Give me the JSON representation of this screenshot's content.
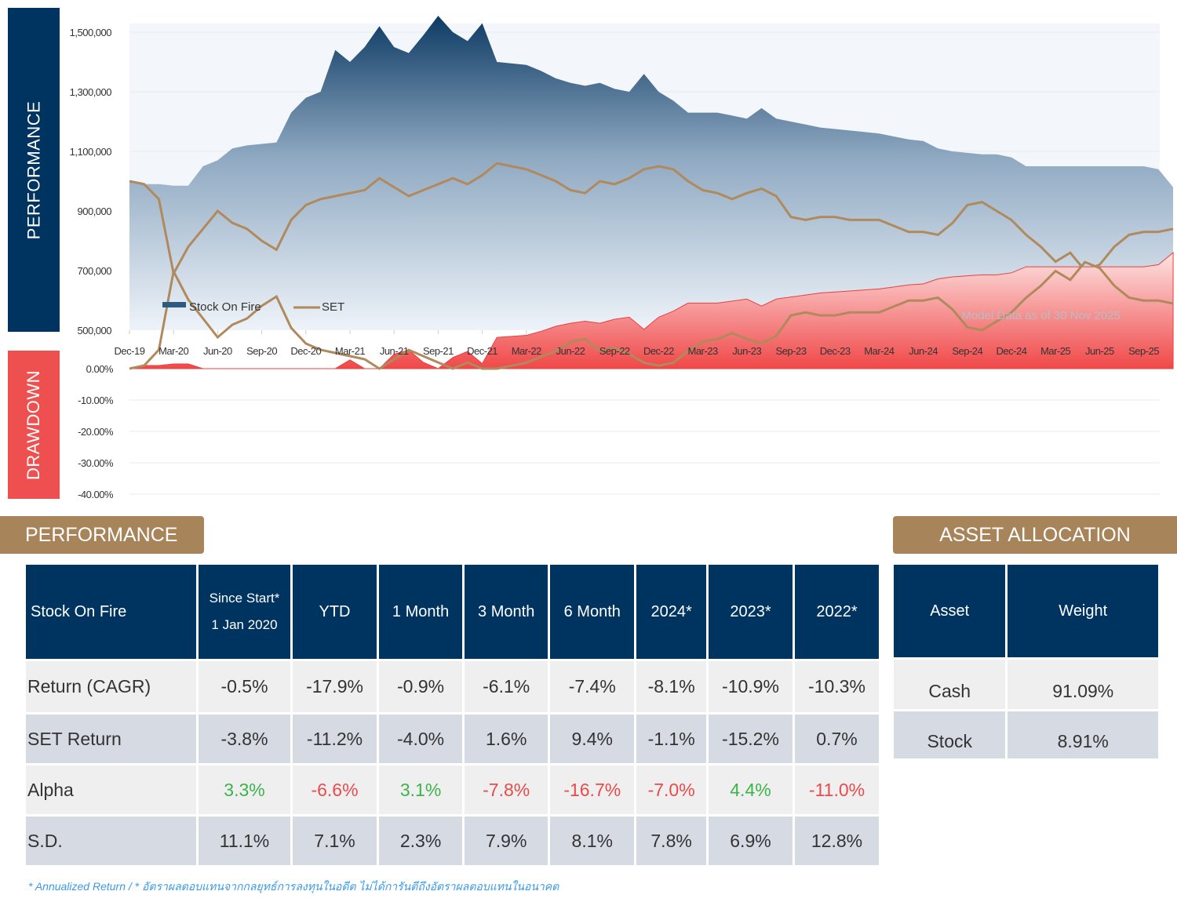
{
  "side_labels": {
    "performance": "PERFORMANCE",
    "drawdown": "DRAWDOWN"
  },
  "colors": {
    "navy": "#003460",
    "gold": "#a8845a",
    "red": "#ee5050",
    "set_line": "#b08a5c",
    "positive": "#3cb44a",
    "negative": "#e94b4b"
  },
  "chart_data": [
    {
      "type": "area",
      "title": "",
      "ylim": [
        500000,
        1500000
      ],
      "y_ticks": [
        "500,000",
        "700,000",
        "900,000",
        "1,100,000",
        "1,300,000",
        "1,500,000"
      ],
      "x_ticks": [
        "Dec-19",
        "Mar-20",
        "Jun-20",
        "Sep-20",
        "Dec-20",
        "Mar-21",
        "Jun-21",
        "Sep-21",
        "Dec-21",
        "Mar-22",
        "Jun-22",
        "Sep-22",
        "Dec-22",
        "Mar-23",
        "Jun-23",
        "Sep-23",
        "Dec-23",
        "Mar-24",
        "Jun-24",
        "Sep-24",
        "Dec-24",
        "Mar-25",
        "Jun-25",
        "Sep-25"
      ],
      "x": [
        "Dec-19",
        "Jan-20",
        "Feb-20",
        "Mar-20",
        "Apr-20",
        "May-20",
        "Jun-20",
        "Jul-20",
        "Aug-20",
        "Sep-20",
        "Oct-20",
        "Nov-20",
        "Dec-20",
        "Jan-21",
        "Feb-21",
        "Mar-21",
        "Apr-21",
        "May-21",
        "Jun-21",
        "Jul-21",
        "Aug-21",
        "Sep-21",
        "Oct-21",
        "Nov-21",
        "Dec-21",
        "Jan-22",
        "Feb-22",
        "Mar-22",
        "Apr-22",
        "May-22",
        "Jun-22",
        "Jul-22",
        "Aug-22",
        "Sep-22",
        "Oct-22",
        "Nov-22",
        "Dec-22",
        "Jan-23",
        "Feb-23",
        "Mar-23",
        "Apr-23",
        "May-23",
        "Jun-23",
        "Jul-23",
        "Aug-23",
        "Sep-23",
        "Oct-23",
        "Nov-23",
        "Dec-23",
        "Jan-24",
        "Feb-24",
        "Mar-24",
        "Apr-24",
        "May-24",
        "Jun-24",
        "Jul-24",
        "Aug-24",
        "Sep-24",
        "Oct-24",
        "Nov-24",
        "Dec-24",
        "Jan-25",
        "Feb-25",
        "Mar-25",
        "Apr-25",
        "May-25",
        "Jun-25",
        "Jul-25",
        "Aug-25",
        "Sep-25",
        "Oct-25",
        "Nov-25"
      ],
      "series": [
        {
          "name": "Stock On Fire",
          "style": "area",
          "values": [
            1000000,
            990000,
            990000,
            985000,
            985000,
            1050000,
            1070000,
            1110000,
            1120000,
            1125000,
            1130000,
            1230000,
            1280000,
            1300000,
            1440000,
            1400000,
            1450000,
            1520000,
            1450000,
            1430000,
            1490000,
            1555000,
            1500000,
            1470000,
            1530000,
            1400000,
            1395000,
            1390000,
            1370000,
            1345000,
            1330000,
            1320000,
            1330000,
            1310000,
            1300000,
            1360000,
            1300000,
            1270000,
            1230000,
            1230000,
            1230000,
            1220000,
            1210000,
            1245000,
            1210000,
            1200000,
            1190000,
            1180000,
            1175000,
            1170000,
            1165000,
            1160000,
            1150000,
            1140000,
            1135000,
            1110000,
            1100000,
            1095000,
            1090000,
            1090000,
            1080000,
            1050000,
            1050000,
            1050000,
            1050000,
            1050000,
            1050000,
            1050000,
            1050000,
            1050000,
            1040000,
            980000
          ]
        },
        {
          "name": "SET",
          "style": "line",
          "values": [
            1000000,
            990000,
            940000,
            690000,
            780000,
            840000,
            900000,
            860000,
            840000,
            800000,
            770000,
            870000,
            920000,
            940000,
            950000,
            960000,
            970000,
            1010000,
            980000,
            950000,
            970000,
            990000,
            1010000,
            990000,
            1020000,
            1060000,
            1050000,
            1040000,
            1020000,
            1000000,
            970000,
            960000,
            1000000,
            990000,
            1010000,
            1040000,
            1050000,
            1040000,
            1000000,
            970000,
            960000,
            940000,
            960000,
            975000,
            950000,
            880000,
            870000,
            880000,
            880000,
            870000,
            870000,
            870000,
            850000,
            830000,
            830000,
            820000,
            860000,
            920000,
            930000,
            900000,
            870000,
            820000,
            780000,
            730000,
            760000,
            700000,
            720000,
            780000,
            820000,
            830000,
            830000,
            840000
          ]
        }
      ],
      "legend": "bottom-left",
      "annotation": "Model Data as of 30 Nov 2025"
    },
    {
      "type": "area",
      "title": "",
      "ylim": [
        -40,
        0
      ],
      "y_ticks": [
        "0.00%",
        "-10.00%",
        "-20.00%",
        "-30.00%",
        "-40.00%"
      ],
      "series": [
        {
          "name": "Stock On Fire",
          "style": "area",
          "derived_from": "drawdown"
        },
        {
          "name": "SET",
          "style": "line",
          "derived_from": "drawdown"
        }
      ]
    }
  ],
  "performance": {
    "title": "PERFORMANCE",
    "headers": [
      "Stock On Fire",
      "Since Start*",
      "1 Jan 2020",
      "YTD",
      "1 Month",
      "3 Month",
      "6 Month",
      "2024*",
      "2023*",
      "2022*"
    ],
    "rows": [
      {
        "label": "Return (CAGR)",
        "values": [
          "-0.5%",
          "-17.9%",
          "-0.9%",
          "-6.1%",
          "-7.4%",
          "-8.1%",
          "-10.9%",
          "-10.3%"
        ]
      },
      {
        "label": "SET Return",
        "values": [
          "-3.8%",
          "-11.2%",
          "-4.0%",
          "1.6%",
          "9.4%",
          "-1.1%",
          "-15.2%",
          "0.7%"
        ]
      },
      {
        "label": "Alpha",
        "values": [
          "3.3%",
          "-6.6%",
          "3.1%",
          "-7.8%",
          "-16.7%",
          "-7.0%",
          "4.4%",
          "-11.0%"
        ],
        "colored": true
      },
      {
        "label": "S.D.",
        "values": [
          "11.1%",
          "7.1%",
          "2.3%",
          "7.9%",
          "8.1%",
          "7.8%",
          "6.9%",
          "12.8%"
        ]
      }
    ]
  },
  "allocation": {
    "title": "ASSET ALLOCATION",
    "headers": [
      "Asset",
      "Weight"
    ],
    "rows": [
      {
        "asset": "Cash",
        "weight": "91.09%"
      },
      {
        "asset": "Stock",
        "weight": "8.91%"
      }
    ]
  },
  "footnote": "* Annualized Return  /  * อัตราผลตอบแทนจากกลยุทธ์การลงทุนในอดีต ไม่ได้การันตีถึงอัตราผลตอบแทนในอนาคต"
}
